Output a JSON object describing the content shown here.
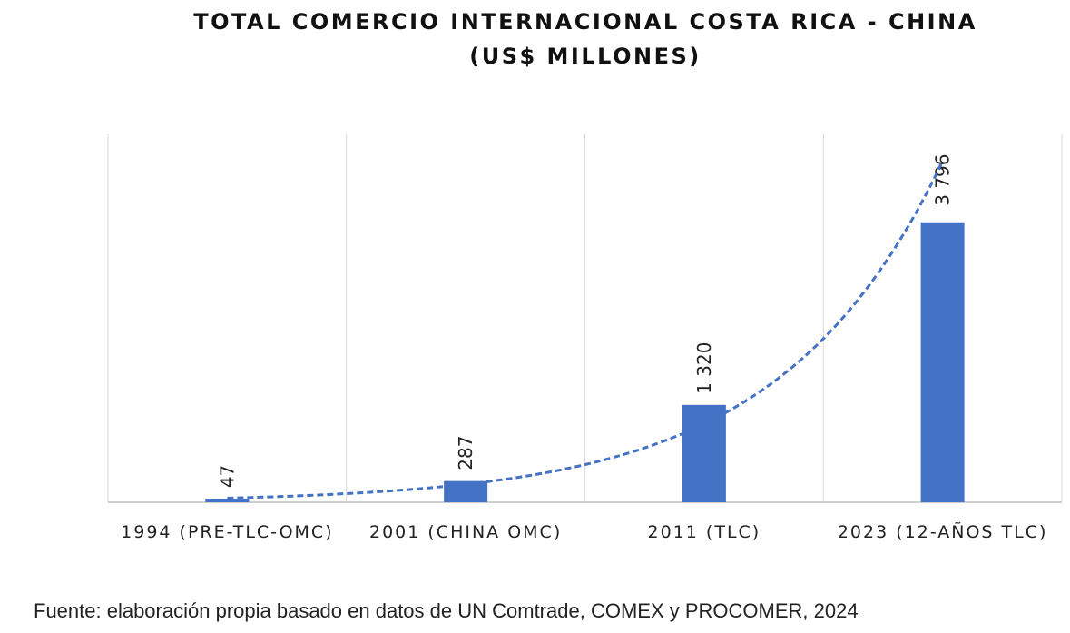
{
  "chart_data": {
    "type": "bar",
    "title": "TOTAL COMERCIO INTERNACIONAL COSTA RICA - CHINA",
    "subtitle": "(US$ MILLONES)",
    "categories": [
      "1994 (PRE-TLC-OMC)",
      "2001 (CHINA OMC)",
      "2011 (TLC)",
      "2023 (12-AÑOS TLC)"
    ],
    "values": [
      47,
      287,
      1320,
      3796
    ],
    "data_labels": [
      "47",
      "287",
      "1 320",
      "3 796"
    ],
    "ylim": [
      0,
      5000
    ],
    "trendline": "exponential, dashed",
    "grid": "vertical category separators",
    "bar_color": "#4472C4",
    "xlabel": "",
    "ylabel": ""
  },
  "source": "Fuente: elaboración propia basado en datos de UN Comtrade, COMEX y PROCOMER, 2024"
}
